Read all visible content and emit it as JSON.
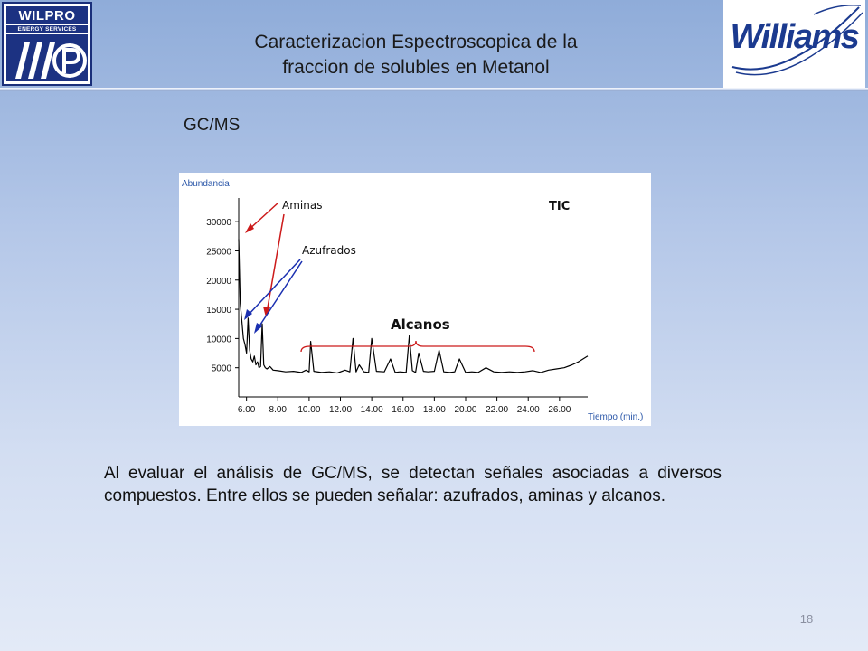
{
  "header": {
    "title_line1": "Caracterizacion Espectroscopica de la",
    "title_line2": "fraccion de solubles en Metanol",
    "left_logo": {
      "name": "WILPRO",
      "tagline": "ENERGY SERVICES"
    },
    "right_logo": {
      "name": "Williams"
    }
  },
  "slide": {
    "subtitle": "GC/MS",
    "body": "Al evaluar el análisis de GC/MS, se detectan señales asociadas a diversos compuestos. Entre ellos se pueden señalar: azufrados, aminas y alcanos.",
    "page_number": "18"
  },
  "chart_data": {
    "type": "line",
    "ylabel": "Abundancia",
    "xlabel": "Tiempo (min.)",
    "xlim": [
      5.5,
      27.8
    ],
    "ylim": [
      0,
      32500
    ],
    "y_ticks": [
      5000,
      10000,
      15000,
      20000,
      25000,
      30000
    ],
    "y_tick_labels": [
      "5000",
      "10000",
      "15000",
      "20000",
      "25000",
      "30000"
    ],
    "x_ticks": [
      6,
      8,
      10,
      12,
      14,
      16,
      18,
      20,
      22,
      24,
      26
    ],
    "x_tick_labels": [
      "6.00",
      "8.00",
      "10.00",
      "12.00",
      "14.00",
      "16.00",
      "18.00",
      "20.00",
      "22.00",
      "24.00",
      "26.00"
    ],
    "series": [
      {
        "color": "#000000",
        "x": [
          5.5,
          5.6,
          5.7,
          5.8,
          5.9,
          6.0,
          6.1,
          6.2,
          6.3,
          6.4,
          6.5,
          6.6,
          6.7,
          6.8,
          6.9,
          7.0,
          7.1,
          7.2,
          7.3,
          7.5,
          7.7,
          8.0,
          8.5,
          9.0,
          9.5,
          9.8,
          10.0,
          10.1,
          10.3,
          10.8,
          11.3,
          11.8,
          12.3,
          12.6,
          12.8,
          13.0,
          13.2,
          13.5,
          13.8,
          14.0,
          14.3,
          14.8,
          15.2,
          15.5,
          15.8,
          16.2,
          16.4,
          16.6,
          16.8,
          17.0,
          17.3,
          17.6,
          18.0,
          18.3,
          18.6,
          19.0,
          19.3,
          19.6,
          20.0,
          20.4,
          20.8,
          21.3,
          21.8,
          22.3,
          22.8,
          23.3,
          23.8,
          24.3,
          24.8,
          25.3,
          25.8,
          26.3,
          26.8,
          27.2,
          27.5,
          27.8
        ],
        "y": [
          27000,
          16000,
          13000,
          10000,
          9000,
          7500,
          13500,
          8000,
          6500,
          6000,
          7000,
          5500,
          6000,
          5000,
          5200,
          12500,
          5500,
          5000,
          4800,
          5200,
          4600,
          4500,
          4300,
          4400,
          4200,
          4600,
          4300,
          9500,
          4400,
          4200,
          4300,
          4100,
          4600,
          4300,
          10000,
          4300,
          5500,
          4300,
          4200,
          10000,
          4400,
          4300,
          6500,
          4200,
          4300,
          4200,
          10500,
          4500,
          4200,
          7500,
          4400,
          4300,
          4400,
          8000,
          4300,
          4200,
          4300,
          6500,
          4200,
          4300,
          4200,
          5000,
          4300,
          4200,
          4300,
          4200,
          4300,
          4500,
          4200,
          4600,
          4800,
          5000,
          5500,
          6000,
          6500,
          7000
        ]
      }
    ],
    "annotations": [
      {
        "text": "Aminas",
        "color": "#cc1a1a"
      },
      {
        "text": "Azufrados",
        "color": "#1a2fb0"
      },
      {
        "text": "Alcanos",
        "color": "#111111",
        "bold": true
      },
      {
        "text": "TIC",
        "color": "#111111",
        "bold": true
      }
    ],
    "grid": false,
    "legend": "none"
  },
  "colors": {
    "header_bg": "#8facd9",
    "wilpro_blue": "#1c3282",
    "williams_blue": "#1b3a8f",
    "chart_axis_label": "#2a56a8",
    "bracket": "#cc1a1a"
  }
}
